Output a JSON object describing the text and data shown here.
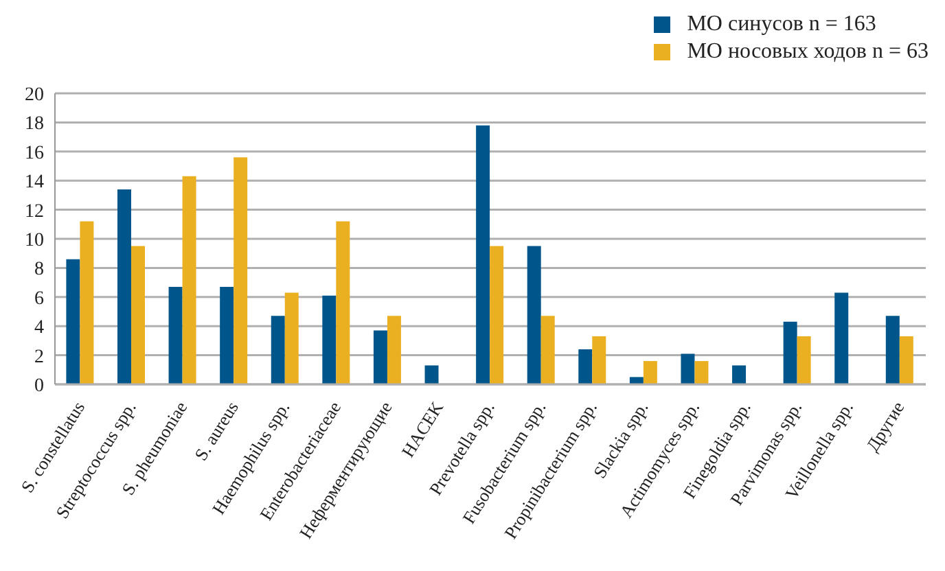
{
  "chart_data": {
    "type": "bar",
    "categories": [
      "S. constellatus",
      "Streptococcus spp.",
      "S. pheumoniae",
      "S. aureus",
      "Haemophilus spp.",
      "Enterobacteriaceae",
      "Неферментирующие",
      "HACEK",
      "Prevotella spp.",
      "Fusobacterium spp.",
      "Propinibacterium spp.",
      "Slackia spp.",
      "Actimomyces spp.",
      "Finegoldia spp.",
      "Parvimonas spp.",
      "Veillonella spp.",
      "Другие"
    ],
    "series": [
      {
        "name": "МО синусов n = 163",
        "color": "#00558a",
        "values": [
          8.6,
          13.4,
          6.7,
          6.7,
          4.7,
          6.1,
          3.7,
          1.3,
          17.8,
          9.5,
          2.4,
          0.5,
          2.1,
          1.3,
          4.3,
          6.3,
          4.7
        ]
      },
      {
        "name": "МО носовых ходов n = 63",
        "color": "#ebb022",
        "values": [
          11.2,
          9.5,
          14.3,
          15.6,
          6.3,
          11.2,
          4.7,
          0,
          9.5,
          4.7,
          3.3,
          1.6,
          1.6,
          0,
          3.3,
          0,
          3.3
        ]
      }
    ],
    "ylim": [
      0,
      20
    ],
    "yticks": [
      0,
      2,
      4,
      6,
      8,
      10,
      12,
      14,
      16,
      18,
      20
    ],
    "grid": "y",
    "legend": "top right"
  }
}
